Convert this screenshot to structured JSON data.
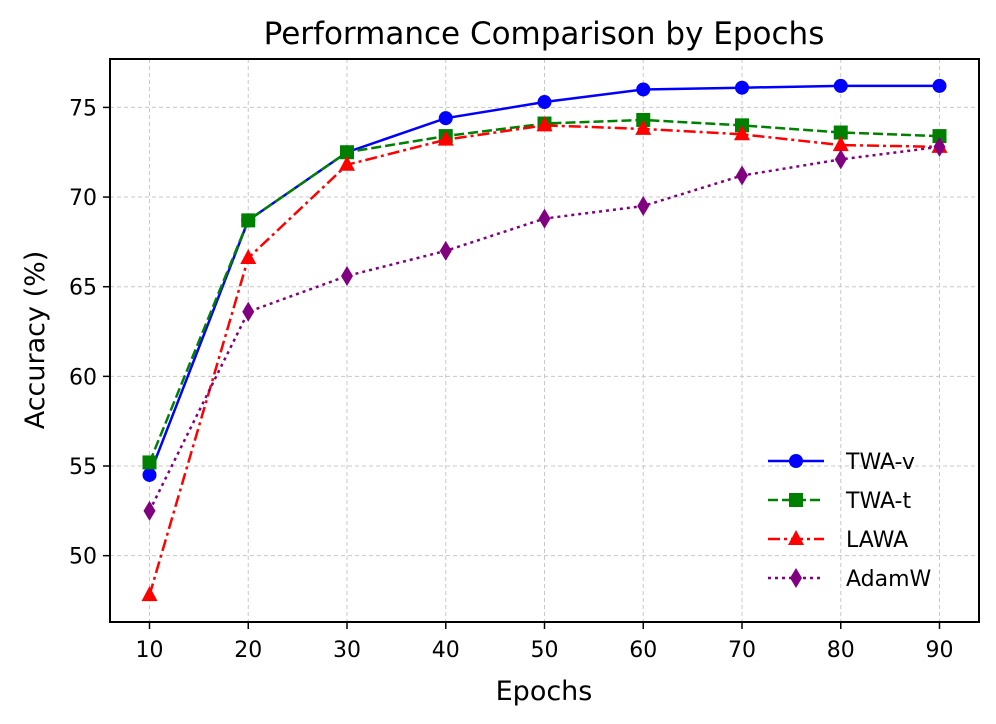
{
  "chart_data": {
    "type": "line",
    "title": "Performance Comparison by Epochs",
    "xlabel": "Epochs",
    "ylabel": "Accuracy (%)",
    "x": [
      10,
      20,
      30,
      40,
      50,
      60,
      70,
      80,
      90
    ],
    "xlim": [
      6,
      94
    ],
    "ylim": [
      46.3,
      77.7
    ],
    "xticks": [
      10,
      20,
      30,
      40,
      50,
      60,
      70,
      80,
      90
    ],
    "yticks": [
      50,
      55,
      60,
      65,
      70,
      75
    ],
    "grid": true,
    "legend_position": "lower-right",
    "series": [
      {
        "name": "TWA-v",
        "color": "#0000ff",
        "marker": "circle",
        "linestyle": "solid",
        "values": [
          54.5,
          68.7,
          72.5,
          74.4,
          75.3,
          76.0,
          76.1,
          76.2,
          76.2
        ]
      },
      {
        "name": "TWA-t",
        "color": "#008000",
        "marker": "square",
        "linestyle": "dashed",
        "values": [
          55.2,
          68.7,
          72.5,
          73.4,
          74.1,
          74.3,
          74.0,
          73.6,
          73.4
        ]
      },
      {
        "name": "LAWA",
        "color": "#ff0000",
        "marker": "triangle",
        "linestyle": "dashdot",
        "values": [
          47.8,
          66.6,
          71.8,
          73.2,
          74.0,
          73.8,
          73.5,
          72.9,
          72.8
        ]
      },
      {
        "name": "AdamW",
        "color": "#800080",
        "marker": "diamond",
        "linestyle": "dotted",
        "values": [
          52.5,
          63.6,
          65.6,
          67.0,
          68.8,
          69.5,
          71.2,
          72.1,
          72.8
        ]
      }
    ]
  }
}
